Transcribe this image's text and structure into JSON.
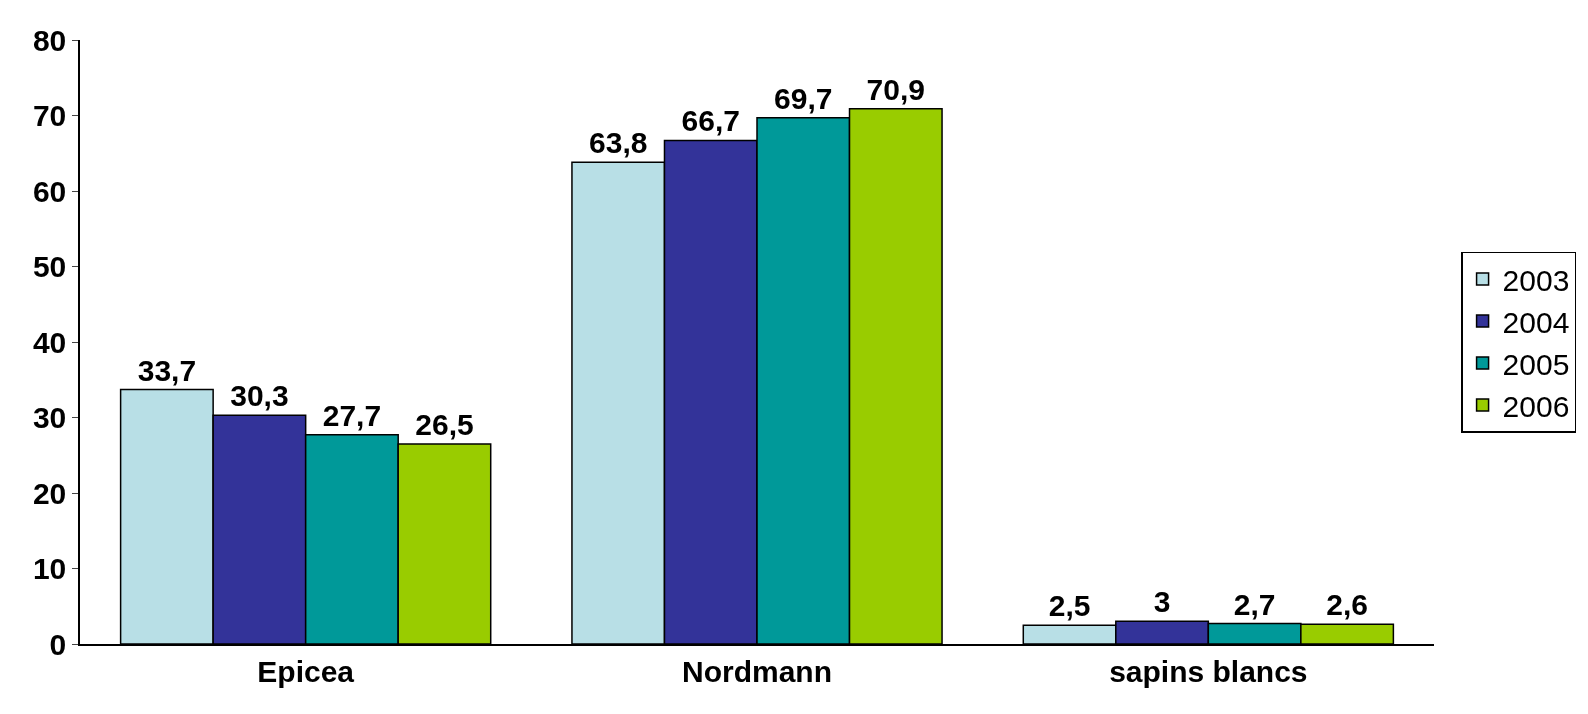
{
  "chart_data": {
    "type": "bar",
    "categories": [
      "Epicea",
      "Nordmann",
      "sapins blancs"
    ],
    "series": [
      {
        "name": "2003",
        "color": "#b8dfe6",
        "values": [
          33.7,
          63.8,
          2.5
        ],
        "value_labels": [
          "33,7",
          "63,8",
          "2,5"
        ]
      },
      {
        "name": "2004",
        "color": "#333399",
        "values": [
          30.3,
          66.7,
          3
        ],
        "value_labels": [
          "30,3",
          "66,7",
          "3"
        ]
      },
      {
        "name": "2005",
        "color": "#009999",
        "values": [
          27.7,
          69.7,
          2.7
        ],
        "value_labels": [
          "27,7",
          "69,7",
          "2,7"
        ]
      },
      {
        "name": "2006",
        "color": "#99cc00",
        "values": [
          26.5,
          70.9,
          2.6
        ],
        "value_labels": [
          "26,5",
          "70,9",
          "2,6"
        ]
      }
    ],
    "ylim": [
      0,
      80
    ],
    "yticks": [
      0,
      10,
      20,
      30,
      40,
      50,
      60,
      70,
      80
    ],
    "grid": false,
    "legend": "right"
  }
}
